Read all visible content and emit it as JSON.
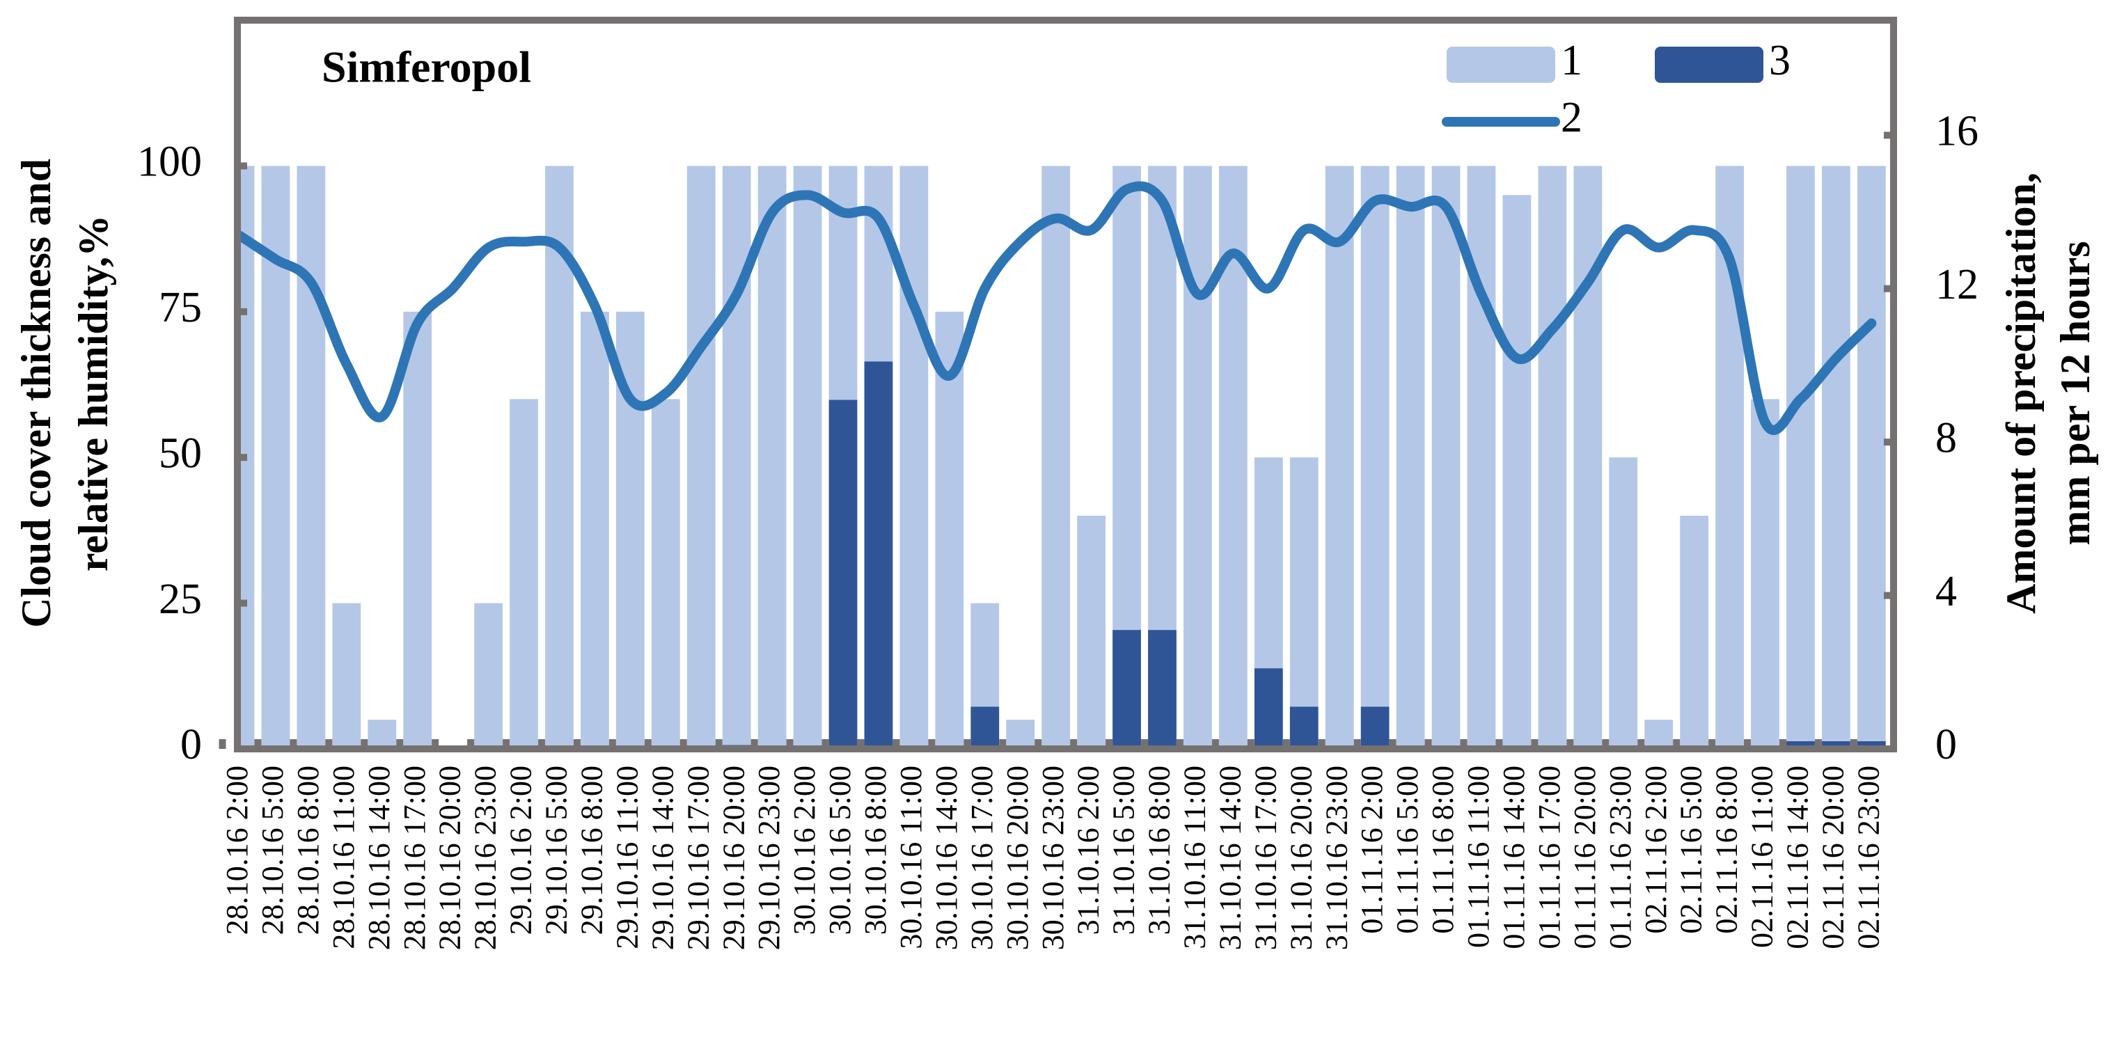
{
  "chart_data": {
    "type": "bar-line",
    "title": "Simferopol",
    "ylabel": [
      "Cloud cover thickness and",
      "relative humidity,%"
    ],
    "y2label": [
      "Amount of precipitation,",
      "mm per 12 hours"
    ],
    "categories": [
      "28.10.16 2:00",
      "28.10.16 5:00",
      "28.10.16 8:00",
      "28.10.16 11:00",
      "28.10.16 14:00",
      "28.10.16 17:00",
      "28.10.16 20:00",
      "28.10.16 23:00",
      "29.10.16 2:00",
      "29.10.16 5:00",
      "29.10.16 8:00",
      "29.10.16 11:00",
      "29.10.16 14:00",
      "29.10.16 17:00",
      "29.10.16 20:00",
      "29.10.16 23:00",
      "30.10.16 2:00",
      "30.10.16 5:00",
      "30.10.16 8:00",
      "30.10.16 11:00",
      "30.10.16 14:00",
      "30.10.16 17:00",
      "30.10.16 20:00",
      "30.10.16 23:00",
      "31.10.16 2:00",
      "31.10.16 5:00",
      "31.10.16 8:00",
      "31.10.16 11:00",
      "31.10.16 14:00",
      "31.10.16 17:00",
      "31.10.16 20:00",
      "31.10.16 23:00",
      "01.11.16 2:00",
      "01.11.16 5:00",
      "01.11.16 8:00",
      "01.11.16 11:00",
      "01.11.16 14:00",
      "01.11.16 17:00",
      "01.11.16 20:00",
      "01.11.16 23:00",
      "02.11.16 2:00",
      "02.11.16 5:00",
      "02.11.16 8:00",
      "02.11.16 11:00",
      "02.11.16 14:00",
      "02.11.16 20:00",
      "02.11.16 23:00"
    ],
    "series": [
      {
        "name": "1",
        "type": "bar",
        "color": "#b4c7e7",
        "values": [
          100,
          100,
          100,
          25,
          5,
          75,
          0,
          25,
          60,
          100,
          75,
          75,
          60,
          100,
          100,
          100,
          100,
          100,
          100,
          100,
          75,
          25,
          5,
          100,
          40,
          100,
          100,
          100,
          100,
          50,
          50,
          100,
          100,
          100,
          100,
          100,
          95,
          100,
          100,
          50,
          5,
          40,
          100,
          60,
          100,
          100,
          100
        ]
      },
      {
        "name": "2",
        "type": "line",
        "color": "#2e75b6",
        "values": [
          88,
          84,
          80,
          66,
          57,
          73,
          79,
          86,
          87,
          86,
          76,
          60,
          61,
          69,
          78,
          92,
          95,
          92,
          91,
          76,
          64,
          79,
          87,
          91,
          89,
          96,
          94,
          78,
          85,
          79,
          89,
          87,
          94,
          93,
          93,
          78,
          67,
          72,
          80,
          89,
          86,
          89,
          84,
          56,
          60,
          67,
          73
        ]
      },
      {
        "name": "3",
        "type": "bar",
        "axis": "y2",
        "color": "#2f5597",
        "values": [
          0,
          0,
          0,
          0,
          0,
          0,
          0,
          0,
          0,
          0,
          0,
          0,
          0,
          0,
          0.1,
          0,
          0,
          9.1,
          10.1,
          0,
          0,
          1.1,
          0,
          0,
          0,
          3.1,
          3.1,
          0,
          0,
          2.1,
          1.1,
          0,
          1.1,
          0,
          0,
          0,
          0,
          0,
          0,
          0,
          0,
          0,
          0,
          0,
          0.2,
          0.2,
          0.2
        ]
      }
    ],
    "ylim": [
      0,
      125
    ],
    "yticks": [
      0,
      25,
      50,
      75,
      100
    ],
    "y2lim": [
      0,
      19
    ],
    "y2ticks": [
      0,
      4,
      8,
      12,
      16
    ]
  }
}
